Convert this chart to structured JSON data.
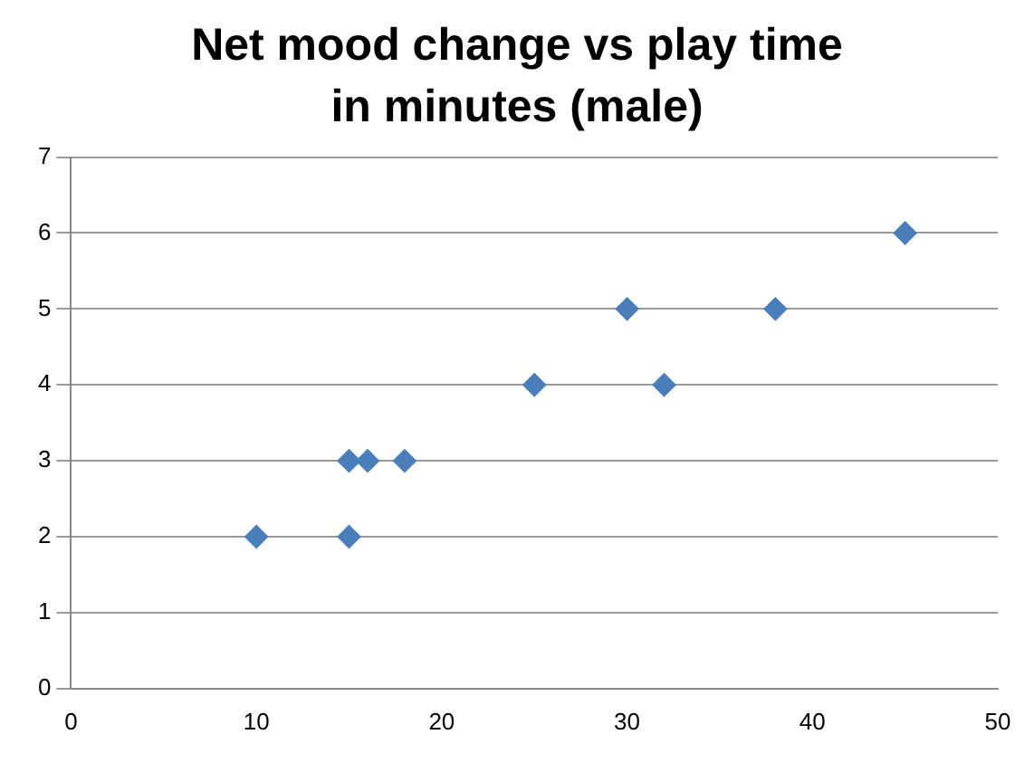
{
  "chart_data": {
    "type": "scatter",
    "title": "Net mood change vs play time in minutes (male)",
    "x": [
      10,
      15,
      15,
      16,
      18,
      25,
      30,
      32,
      38,
      45
    ],
    "values": [
      2,
      2,
      3,
      3,
      3,
      4,
      5,
      4,
      5,
      6
    ],
    "color": "#4a7ebb",
    "marker": "diamond",
    "grid": "y",
    "legend": false,
    "xlim": [
      0,
      50
    ],
    "xticks": [
      0,
      10,
      20,
      30,
      40,
      50
    ],
    "ylim": [
      0,
      7
    ],
    "yticks": [
      0,
      1,
      2,
      3,
      4,
      5,
      6,
      7
    ]
  }
}
